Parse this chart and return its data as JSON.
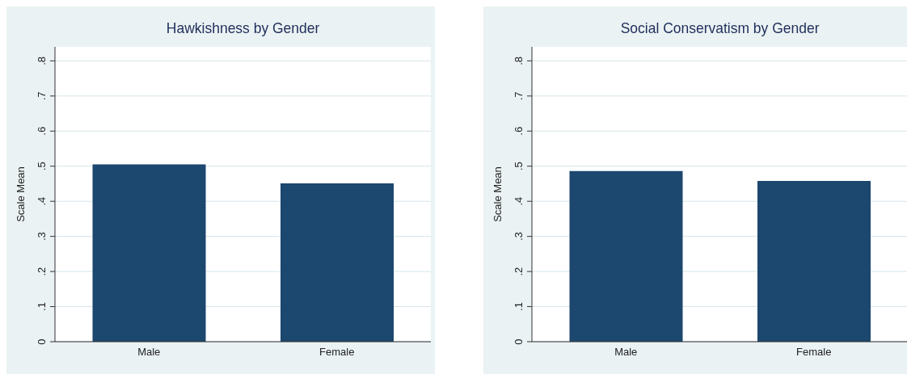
{
  "chart_data": [
    {
      "type": "bar",
      "title": "Hawkishness by Gender",
      "ylabel": "Scale Mean",
      "categories": [
        "Male",
        "Female"
      ],
      "values": [
        0.505,
        0.451
      ],
      "color": "#1c476e",
      "ylim": [
        0,
        0.84
      ],
      "yticks": [
        {
          "value": 0,
          "label": "0"
        },
        {
          "value": 0.1,
          "label": ".1"
        },
        {
          "value": 0.2,
          "label": ".2"
        },
        {
          "value": 0.3,
          "label": ".3"
        },
        {
          "value": 0.4,
          "label": ".4"
        },
        {
          "value": 0.5,
          "label": ".5"
        },
        {
          "value": 0.6,
          "label": ".6"
        },
        {
          "value": 0.7,
          "label": ".7"
        },
        {
          "value": 0.8,
          "label": ".8"
        }
      ],
      "grid": "y",
      "legend": false
    },
    {
      "type": "bar",
      "title": "Social Conservatism by Gender",
      "ylabel": "Scale Mean",
      "categories": [
        "Male",
        "Female"
      ],
      "values": [
        0.486,
        0.458
      ],
      "color": "#1c476e",
      "ylim": [
        0,
        0.84
      ],
      "yticks": [
        {
          "value": 0,
          "label": "0"
        },
        {
          "value": 0.1,
          "label": ".1"
        },
        {
          "value": 0.2,
          "label": ".2"
        },
        {
          "value": 0.3,
          "label": ".3"
        },
        {
          "value": 0.4,
          "label": ".4"
        },
        {
          "value": 0.5,
          "label": ".5"
        },
        {
          "value": 0.6,
          "label": ".6"
        },
        {
          "value": 0.7,
          "label": ".7"
        },
        {
          "value": 0.8,
          "label": ".8"
        }
      ],
      "grid": "y",
      "legend": false
    }
  ]
}
